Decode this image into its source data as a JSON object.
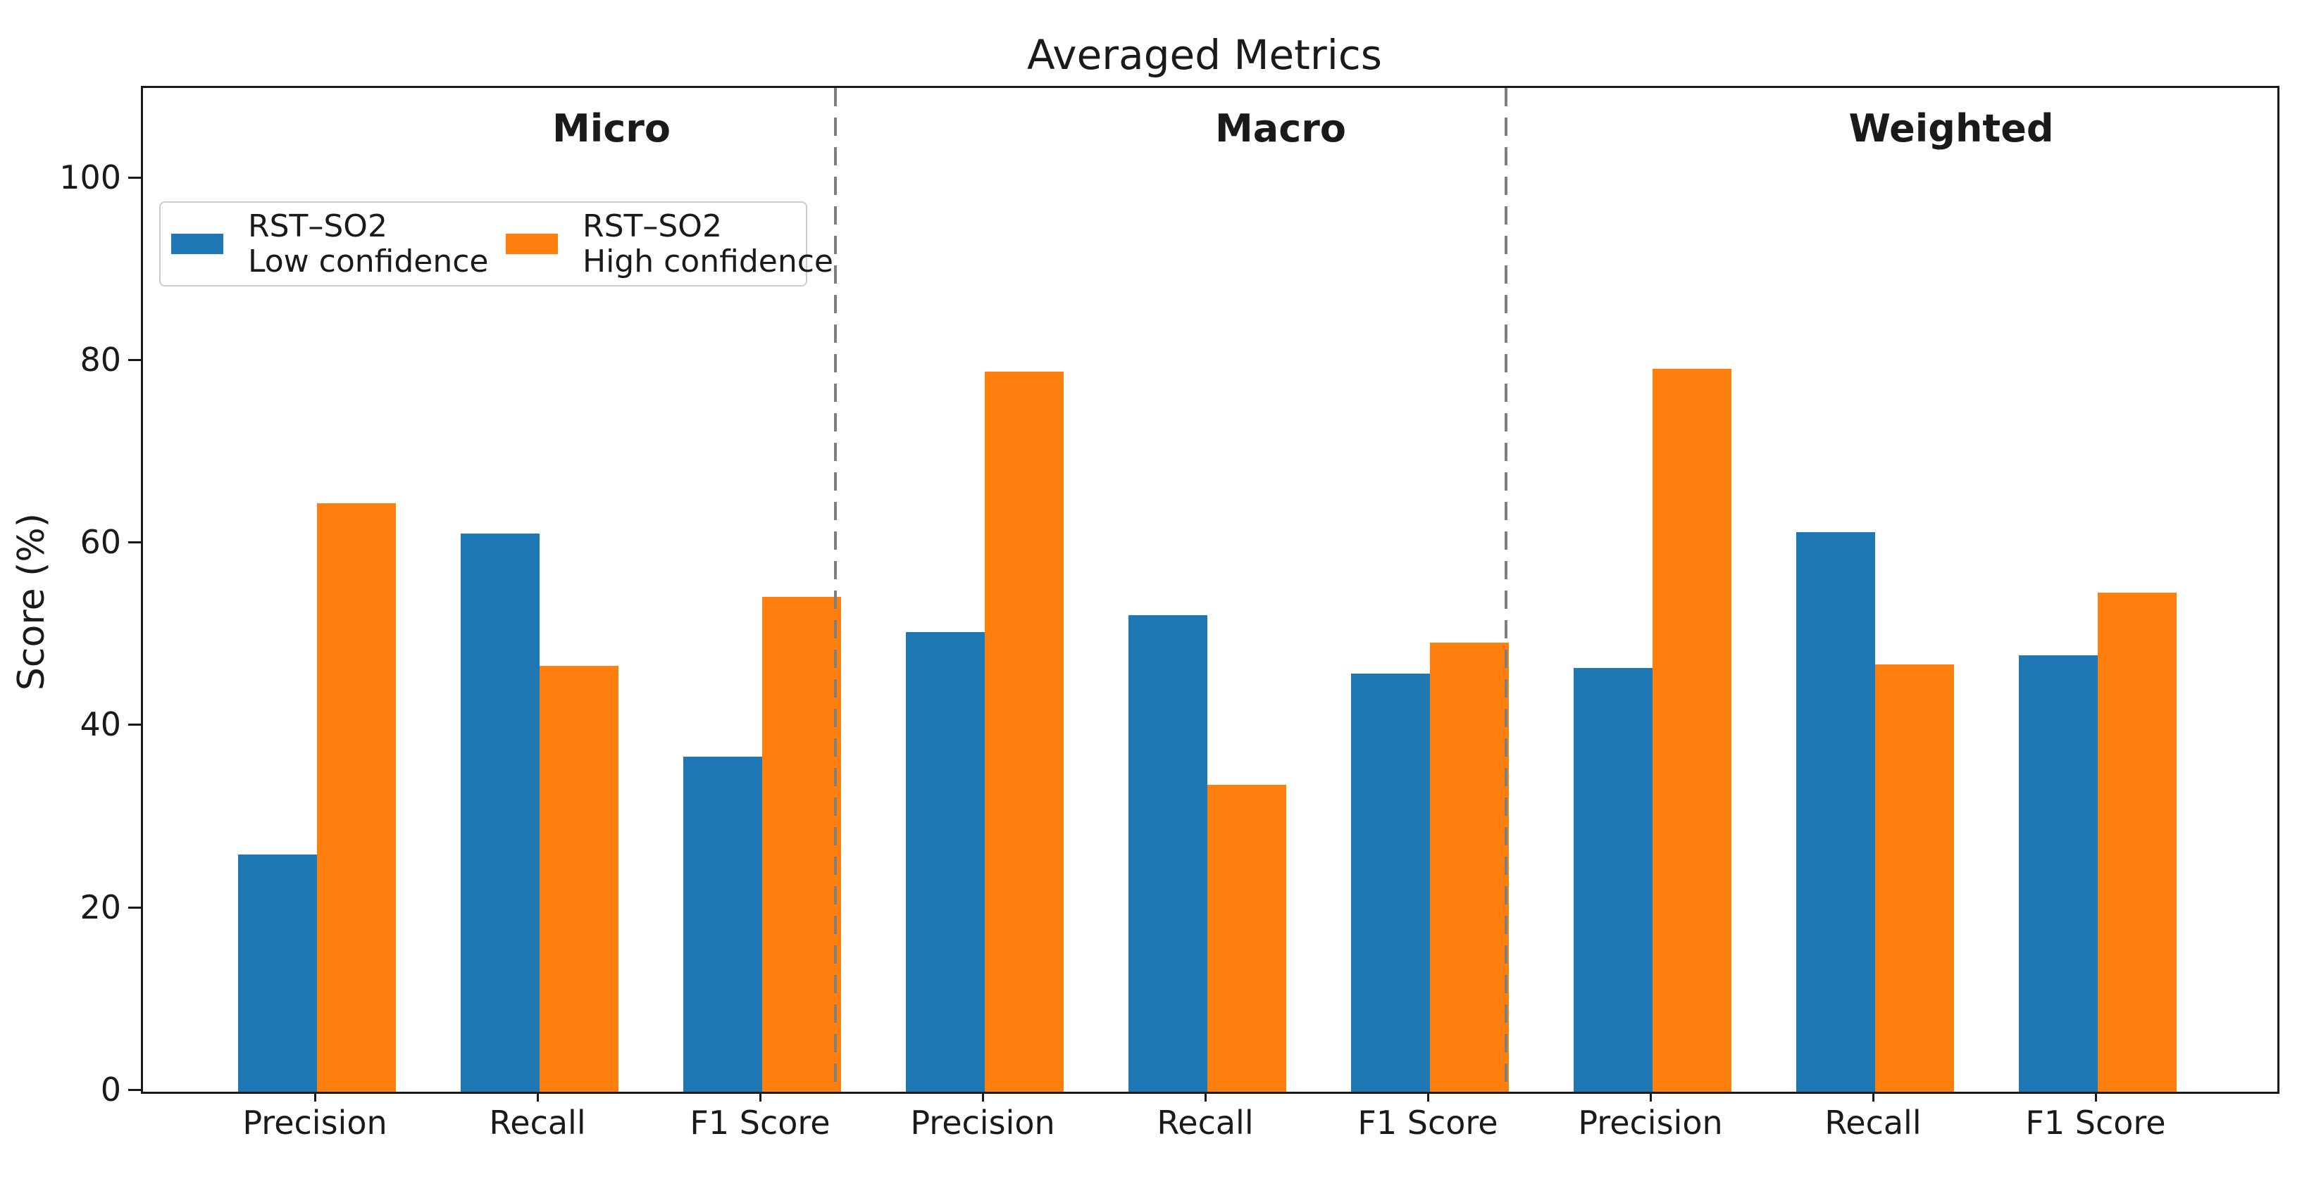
{
  "chart_data": {
    "type": "bar",
    "title": "Averaged Metrics",
    "ylabel": "Score (%)",
    "ylim": [
      0,
      110
    ],
    "yticks": [
      0,
      20,
      40,
      60,
      80,
      100
    ],
    "grid": false,
    "legend_position": "upper left",
    "group_labels": [
      "Micro",
      "Macro",
      "Weighted"
    ],
    "categories": [
      "Precision",
      "Recall",
      "F1 Score",
      "Precision",
      "Recall",
      "F1 Score",
      "Precision",
      "Recall",
      "F1 Score"
    ],
    "series": [
      {
        "name": "RST–SO2 Low confidence",
        "legend_line1": "RST–SO2",
        "legend_line2": "Low confidence",
        "color": "#1f77b4",
        "values": [
          26.0,
          61.2,
          36.7,
          50.4,
          52.2,
          45.8,
          46.4,
          61.3,
          47.8
        ]
      },
      {
        "name": "RST–SO2 High confidence",
        "legend_line1": "RST–SO2",
        "legend_line2": "High confidence",
        "color": "#ff7f0e",
        "values": [
          64.5,
          46.7,
          54.2,
          78.9,
          33.6,
          49.2,
          79.2,
          46.8,
          54.7
        ]
      }
    ],
    "separator_color": "#7f7f7f",
    "axis_color": "#1a1a1a"
  }
}
